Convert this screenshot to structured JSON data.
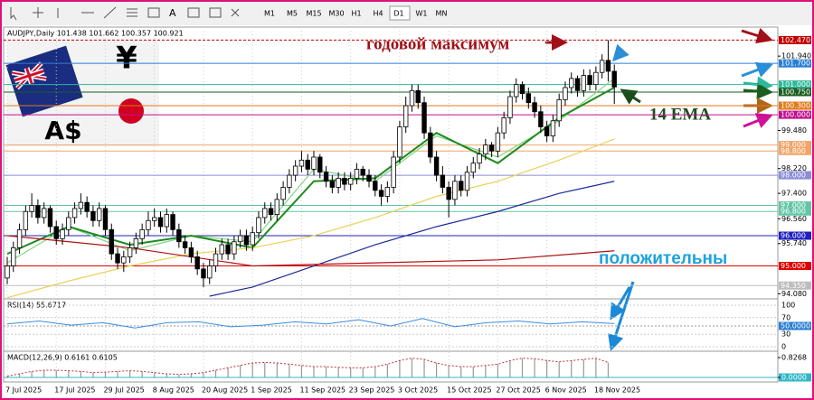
{
  "toolbar": {
    "timeframes": [
      "M1",
      "M5",
      "M15",
      "M30",
      "H1",
      "H4",
      "D1",
      "W1",
      "MN"
    ]
  },
  "chart_data": {
    "type": "candlestick",
    "header": "AUDJPY,Daily  101.438 101.662 100.357 100.921",
    "flag": {
      "currency": "A$",
      "yen": "¥"
    },
    "annotations": {
      "yearly_high": "годовой максимум",
      "ema": "14 EMA",
      "positive": "положительны"
    },
    "ylim": [
      93.94,
      102.9
    ],
    "yticks": [
      {
        "value": 101.94,
        "label": "101.940"
      },
      {
        "value": 99.48,
        "label": "99.480"
      },
      {
        "value": 98.22,
        "label": "98.220"
      },
      {
        "value": 97.4,
        "label": "97.400"
      },
      {
        "value": 96.56,
        "label": "96.560"
      },
      {
        "value": 95.74,
        "label": "95.740"
      },
      {
        "value": 94.08,
        "label": "94.080"
      }
    ],
    "levels": [
      {
        "value": 102.47,
        "label": "102.470",
        "color": "#c00000"
      },
      {
        "value": 101.7,
        "label": "101.700",
        "color": "#2a7fd4"
      },
      {
        "value": 101.0,
        "label": "101.000",
        "color": "#2fb79a"
      },
      {
        "value": 100.75,
        "label": "100.750",
        "color": "#1b5e20"
      },
      {
        "value": 100.3,
        "label": "100.300",
        "color": "#e07a1a"
      },
      {
        "value": 100.0,
        "label": "100.000",
        "color": "#c0108f"
      },
      {
        "value": 99.0,
        "label": "99.000",
        "color": "#f2a468"
      },
      {
        "value": 98.8,
        "label": "98.800",
        "color": "#f2a468"
      },
      {
        "value": 98.0,
        "label": "98.000",
        "color": "#8c8cd8"
      },
      {
        "value": 97.0,
        "label": "97.000",
        "color": "#63c6a6"
      },
      {
        "value": 96.8,
        "label": "96.800",
        "color": "#63c6a6"
      },
      {
        "value": 96.0,
        "label": "96.000",
        "color": "#2020c0"
      },
      {
        "value": 95.0,
        "label": "95.000",
        "color": "#e00000"
      },
      {
        "value": 94.35,
        "label": "94.350",
        "color": "#bdbdbd"
      }
    ],
    "x_labels": [
      "7 Jul 2025",
      "17 Jul 2025",
      "29 Jul 2025",
      "8 Aug 2025",
      "20 Aug 2025",
      "1 Sep 2025",
      "11 Sep 2025",
      "23 Sep 2025",
      "3 Oct 2025",
      "15 Oct 2025",
      "27 Oct 2025",
      "6 Nov 2025",
      "18 Nov 2025"
    ],
    "ohlc": [
      [
        94.6,
        95.3,
        94.4,
        95.0
      ],
      [
        95.0,
        95.8,
        94.8,
        95.6
      ],
      [
        95.6,
        96.4,
        95.4,
        96.2
      ],
      [
        96.2,
        97.0,
        96.0,
        96.8
      ],
      [
        96.8,
        97.4,
        96.6,
        97.0
      ],
      [
        97.0,
        97.2,
        96.4,
        96.6
      ],
      [
        96.6,
        97.1,
        96.4,
        96.9
      ],
      [
        96.9,
        97.0,
        96.1,
        96.3
      ],
      [
        96.3,
        96.5,
        95.7,
        95.9
      ],
      [
        95.9,
        96.4,
        95.7,
        96.2
      ],
      [
        96.2,
        96.8,
        96.0,
        96.6
      ],
      [
        96.6,
        97.1,
        96.4,
        96.9
      ],
      [
        96.9,
        97.4,
        96.7,
        97.1
      ],
      [
        97.1,
        97.3,
        96.6,
        96.8
      ],
      [
        96.8,
        97.0,
        96.3,
        96.5
      ],
      [
        96.5,
        97.1,
        96.3,
        96.9
      ],
      [
        96.9,
        97.0,
        96.0,
        96.2
      ],
      [
        96.2,
        96.4,
        95.2,
        95.4
      ],
      [
        95.4,
        95.6,
        94.9,
        95.1
      ],
      [
        95.1,
        95.5,
        94.8,
        95.3
      ],
      [
        95.3,
        95.8,
        95.1,
        95.6
      ],
      [
        95.6,
        96.1,
        95.4,
        95.9
      ],
      [
        95.9,
        96.4,
        95.7,
        96.2
      ],
      [
        96.2,
        96.8,
        96.0,
        96.5
      ],
      [
        96.5,
        96.9,
        96.3,
        96.6
      ],
      [
        96.6,
        96.8,
        96.1,
        96.3
      ],
      [
        96.3,
        96.9,
        96.1,
        96.7
      ],
      [
        96.7,
        96.8,
        96.0,
        96.2
      ],
      [
        96.2,
        96.4,
        95.6,
        95.8
      ],
      [
        95.8,
        96.0,
        95.4,
        95.6
      ],
      [
        95.6,
        95.8,
        95.1,
        95.3
      ],
      [
        95.3,
        95.5,
        94.7,
        94.9
      ],
      [
        94.9,
        95.1,
        94.3,
        94.6
      ],
      [
        94.6,
        95.2,
        94.4,
        95.0
      ],
      [
        95.0,
        95.6,
        94.8,
        95.4
      ],
      [
        95.4,
        95.9,
        95.2,
        95.7
      ],
      [
        95.7,
        95.9,
        95.2,
        95.4
      ],
      [
        95.4,
        96.0,
        95.2,
        95.8
      ],
      [
        95.8,
        96.2,
        95.6,
        96.0
      ],
      [
        96.0,
        96.2,
        95.5,
        95.7
      ],
      [
        95.7,
        96.3,
        95.5,
        96.1
      ],
      [
        96.1,
        96.8,
        95.9,
        96.6
      ],
      [
        96.6,
        97.1,
        96.4,
        96.9
      ],
      [
        96.9,
        97.1,
        96.5,
        96.7
      ],
      [
        96.7,
        97.4,
        96.5,
        97.2
      ],
      [
        97.2,
        97.8,
        97.0,
        97.6
      ],
      [
        97.6,
        98.2,
        97.4,
        98.0
      ],
      [
        98.0,
        98.5,
        97.8,
        98.3
      ],
      [
        98.3,
        98.8,
        98.1,
        98.5
      ],
      [
        98.5,
        98.7,
        98.0,
        98.2
      ],
      [
        98.2,
        98.8,
        98.0,
        98.6
      ],
      [
        98.6,
        98.7,
        97.9,
        98.1
      ],
      [
        98.1,
        98.3,
        97.6,
        97.8
      ],
      [
        97.8,
        98.0,
        97.4,
        97.6
      ],
      [
        97.6,
        98.1,
        97.4,
        97.9
      ],
      [
        97.9,
        98.1,
        97.5,
        97.7
      ],
      [
        97.7,
        98.1,
        97.5,
        97.9
      ],
      [
        97.9,
        98.4,
        97.7,
        98.2
      ],
      [
        98.2,
        98.3,
        97.8,
        98.0
      ],
      [
        98.0,
        98.2,
        97.6,
        97.8
      ],
      [
        97.8,
        98.0,
        97.3,
        97.5
      ],
      [
        97.5,
        97.7,
        97.0,
        97.3
      ],
      [
        97.3,
        97.8,
        97.1,
        97.6
      ],
      [
        97.6,
        98.8,
        97.4,
        98.6
      ],
      [
        98.6,
        99.8,
        98.4,
        99.6
      ],
      [
        99.6,
        100.6,
        99.4,
        100.3
      ],
      [
        100.3,
        101.0,
        100.1,
        100.8
      ],
      [
        100.8,
        101.0,
        100.2,
        100.4
      ],
      [
        100.4,
        100.6,
        99.2,
        99.4
      ],
      [
        99.4,
        99.6,
        98.4,
        98.6
      ],
      [
        98.6,
        98.8,
        97.8,
        98.0
      ],
      [
        98.0,
        98.3,
        97.4,
        97.6
      ],
      [
        97.6,
        97.8,
        96.6,
        97.2
      ],
      [
        97.2,
        98.0,
        97.0,
        97.8
      ],
      [
        97.8,
        98.0,
        97.3,
        97.5
      ],
      [
        97.5,
        98.3,
        97.3,
        98.1
      ],
      [
        98.1,
        98.6,
        97.9,
        98.4
      ],
      [
        98.4,
        98.9,
        98.2,
        98.7
      ],
      [
        98.7,
        99.2,
        98.5,
        99.0
      ],
      [
        99.0,
        99.1,
        98.6,
        98.8
      ],
      [
        98.8,
        99.6,
        98.6,
        99.4
      ],
      [
        99.4,
        100.1,
        99.2,
        99.9
      ],
      [
        99.9,
        100.8,
        99.7,
        100.6
      ],
      [
        100.6,
        101.2,
        100.4,
        101.0
      ],
      [
        101.0,
        101.1,
        100.5,
        100.7
      ],
      [
        100.7,
        100.9,
        100.2,
        100.4
      ],
      [
        100.4,
        100.6,
        99.9,
        100.1
      ],
      [
        100.1,
        100.3,
        99.4,
        99.6
      ],
      [
        99.6,
        99.8,
        99.1,
        99.3
      ],
      [
        99.3,
        100.0,
        99.1,
        99.8
      ],
      [
        99.8,
        100.7,
        99.6,
        100.5
      ],
      [
        100.5,
        101.1,
        100.3,
        100.9
      ],
      [
        100.9,
        101.4,
        100.7,
        101.2
      ],
      [
        101.2,
        101.3,
        100.6,
        100.8
      ],
      [
        100.8,
        101.5,
        100.6,
        101.3
      ],
      [
        101.3,
        101.5,
        100.8,
        101.0
      ],
      [
        101.0,
        101.6,
        100.8,
        101.4
      ],
      [
        101.4,
        102.0,
        101.2,
        101.8
      ],
      [
        101.8,
        102.47,
        101.1,
        101.438
      ],
      [
        101.438,
        101.662,
        100.357,
        100.921
      ]
    ],
    "lines": [
      {
        "color": "#7fd67f",
        "x": [
          0,
          10,
          20,
          30,
          40,
          50,
          60,
          70,
          80,
          90,
          99
        ],
        "values": [
          95.1,
          96.3,
          95.5,
          96.0,
          95.8,
          98.2,
          97.8,
          99.3,
          98.6,
          99.8,
          101.2
        ]
      },
      {
        "color": "#1e8a1e",
        "x": [
          0,
          10,
          20,
          30,
          40,
          50,
          60,
          70,
          80,
          90,
          99
        ],
        "values": [
          95.4,
          96.3,
          95.7,
          96.0,
          95.6,
          97.8,
          97.9,
          99.4,
          98.4,
          99.9,
          100.9
        ]
      },
      {
        "color": "#e8d25a",
        "x": [
          0,
          10,
          20,
          30,
          40,
          50,
          60,
          70,
          80,
          90,
          99
        ],
        "values": [
          93.95,
          94.5,
          95.0,
          95.4,
          95.6,
          96.0,
          96.6,
          97.3,
          97.8,
          98.5,
          99.2
        ]
      },
      {
        "color": "#1a2a9a",
        "x": [
          33,
          40,
          50,
          60,
          70,
          80,
          90,
          99
        ],
        "values": [
          94.0,
          94.3,
          95.0,
          95.7,
          96.3,
          96.8,
          97.4,
          97.8
        ]
      },
      {
        "color": "#b01010",
        "x": [
          0,
          20,
          40,
          60,
          80,
          99
        ],
        "values": [
          96.0,
          95.6,
          95.0,
          95.1,
          95.2,
          95.5
        ]
      }
    ],
    "rsi": {
      "label": "RSI(14) 55.6717",
      "yticks": [
        100,
        70,
        30,
        0
      ],
      "level": {
        "value": 50,
        "label": "50.0000"
      },
      "values": [
        55,
        62,
        52,
        58,
        45,
        58,
        60,
        48,
        52,
        60,
        55,
        65,
        50,
        68,
        48,
        58,
        62,
        55,
        60,
        55.67
      ]
    },
    "macd": {
      "label": "MACD(12,26,9) 0.6161 0.6105",
      "yticks": [
        {
          "value": 0.8268,
          "label": "0.8268"
        },
        {
          "value": 0,
          "label": "0.0000"
        }
      ],
      "values": [
        0.05,
        0.15,
        0.25,
        0.3,
        0.3,
        0.28,
        0.25,
        0.2,
        0.22,
        0.25,
        0.28,
        0.25,
        0.2,
        0.15,
        0.12,
        0.15,
        0.2,
        0.3,
        0.4,
        0.5,
        0.6,
        0.62,
        0.6,
        0.55,
        0.5,
        0.45,
        0.45,
        0.42,
        0.4,
        0.4,
        0.45,
        0.55,
        0.7,
        0.8,
        0.75,
        0.6,
        0.5,
        0.45,
        0.45,
        0.5,
        0.55,
        0.7,
        0.8,
        0.78,
        0.7,
        0.65,
        0.7,
        0.75,
        0.8,
        0.62
      ]
    }
  }
}
